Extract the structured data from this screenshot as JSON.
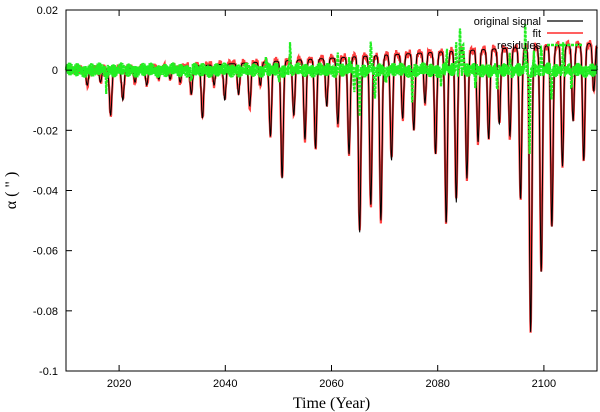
{
  "chart_data": {
    "type": "line",
    "title": "",
    "xlabel": "Time (Year)",
    "ylabel": "α ( \" )",
    "xlim": [
      2010,
      2110
    ],
    "ylim": [
      -0.1,
      0.02
    ],
    "xticks": [
      2020,
      2040,
      2060,
      2080,
      2100
    ],
    "xtick_labels": [
      "2020",
      "2040",
      "2060",
      "2080",
      "2100"
    ],
    "yticks": [
      0.02,
      0,
      -0.02,
      -0.04,
      -0.06,
      -0.08,
      -0.1
    ],
    "ytick_labels": [
      "0.02",
      "0",
      "-0.02",
      "-0.04",
      "-0.06",
      "-0.08",
      "-0.1"
    ],
    "grid": false,
    "legend_position": "top-right",
    "series": [
      {
        "name": "original signal",
        "color": "#000000",
        "baseline": [
          [
            2010,
            0.0
          ],
          [
            2030,
            0.001
          ],
          [
            2050,
            0.003
          ],
          [
            2070,
            0.005
          ],
          [
            2090,
            0.007
          ],
          [
            2110,
            0.009
          ]
        ],
        "dips": [
          [
            2014,
            -0.005
          ],
          [
            2016.5,
            -0.004
          ],
          [
            2018.4,
            -0.015
          ],
          [
            2020.7,
            -0.01
          ],
          [
            2023,
            -0.004
          ],
          [
            2025.2,
            -0.005
          ],
          [
            2027.5,
            -0.003
          ],
          [
            2029.6,
            -0.003
          ],
          [
            2031.5,
            -0.004
          ],
          [
            2033.6,
            -0.008
          ],
          [
            2035.7,
            -0.016
          ],
          [
            2037.9,
            -0.005
          ],
          [
            2039.9,
            -0.01
          ],
          [
            2042.5,
            -0.008
          ],
          [
            2044.6,
            -0.012
          ],
          [
            2046.6,
            -0.005
          ],
          [
            2048.5,
            -0.022
          ],
          [
            2050.7,
            -0.036
          ],
          [
            2052.9,
            -0.015
          ],
          [
            2055,
            -0.023
          ],
          [
            2057,
            -0.026
          ],
          [
            2059.1,
            -0.012
          ],
          [
            2061.2,
            -0.018
          ],
          [
            2063.3,
            -0.028
          ],
          [
            2065.3,
            -0.054
          ],
          [
            2067.4,
            -0.045
          ],
          [
            2069.3,
            -0.05
          ],
          [
            2071.3,
            -0.03
          ],
          [
            2073.4,
            -0.016
          ],
          [
            2075.5,
            -0.02
          ],
          [
            2077.6,
            -0.011
          ],
          [
            2079.6,
            -0.028
          ],
          [
            2081.6,
            -0.051
          ],
          [
            2083.5,
            -0.044
          ],
          [
            2085.5,
            -0.036
          ],
          [
            2087.6,
            -0.024
          ],
          [
            2089.6,
            -0.023
          ],
          [
            2091.6,
            -0.018
          ],
          [
            2093.6,
            -0.022
          ],
          [
            2095.6,
            -0.043
          ],
          [
            2097.5,
            -0.087
          ],
          [
            2099.5,
            -0.067
          ],
          [
            2101.5,
            -0.052
          ],
          [
            2103.5,
            -0.032
          ],
          [
            2105.5,
            -0.017
          ],
          [
            2107.5,
            -0.03
          ],
          [
            2109.4,
            -0.007
          ]
        ]
      },
      {
        "name": "fit",
        "color": "#ff0000"
      },
      {
        "name": "residules",
        "color": "#22ee22",
        "range": [
          -0.004,
          0.004
        ],
        "spikes": [
          [
            2017.6,
            -0.006
          ],
          [
            2033.6,
            -0.004
          ],
          [
            2047.7,
            0.004
          ],
          [
            2050.1,
            -0.004
          ],
          [
            2052.2,
            0.009
          ],
          [
            2061.2,
            0.006
          ],
          [
            2063.4,
            0.003
          ],
          [
            2064.3,
            -0.008
          ],
          [
            2065.3,
            -0.016
          ],
          [
            2067.4,
            0.01
          ],
          [
            2068.2,
            -0.01
          ],
          [
            2070.2,
            -0.004
          ],
          [
            2075.2,
            -0.01
          ],
          [
            2080.6,
            -0.004
          ],
          [
            2081.7,
            0.006
          ],
          [
            2083.5,
            0.009
          ],
          [
            2084.2,
            0.014
          ],
          [
            2084.8,
            0.01
          ],
          [
            2087.1,
            -0.005
          ],
          [
            2091.2,
            -0.006
          ],
          [
            2093.6,
            0.005
          ],
          [
            2096.5,
            0.016
          ],
          [
            2097.3,
            -0.027
          ],
          [
            2098.1,
            0.005
          ],
          [
            2099.5,
            0.008
          ],
          [
            2101.4,
            -0.01
          ],
          [
            2103.6,
            0.008
          ],
          [
            2105.2,
            -0.006
          ]
        ]
      }
    ]
  }
}
